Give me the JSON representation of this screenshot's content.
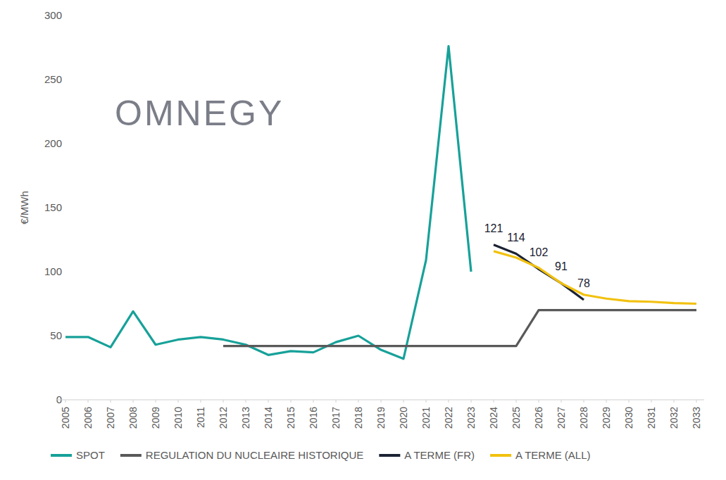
{
  "chart_data": {
    "type": "line",
    "y_label": "€/MWh",
    "annotations": [
      "OMNEGY"
    ],
    "categories": [
      "2005",
      "2006",
      "2007",
      "2008",
      "2009",
      "2010",
      "2011",
      "2012",
      "2013",
      "2014",
      "2015",
      "2016",
      "2017",
      "2018",
      "2019",
      "2020",
      "2021",
      "2022",
      "2023",
      "2024",
      "2025",
      "2026",
      "2027",
      "2028",
      "2029",
      "2030",
      "2031",
      "2032",
      "2033"
    ],
    "ylim": [
      0,
      300
    ],
    "yticks": [
      0,
      50,
      100,
      150,
      200,
      250,
      300
    ],
    "grid": false,
    "legend": "bottom",
    "series": [
      {
        "name": "SPOT",
        "color": "#17a199",
        "values": [
          49,
          49,
          41,
          69,
          43,
          47,
          49,
          47,
          43,
          35,
          38,
          37,
          45,
          50,
          39,
          32,
          109,
          276,
          100,
          null,
          null,
          null,
          null,
          null,
          null,
          null,
          null,
          null,
          null
        ]
      },
      {
        "name": "REGULATION DU NUCLEAIRE HISTORIQUE",
        "color": "#595959",
        "values": [
          null,
          null,
          null,
          null,
          null,
          null,
          null,
          42,
          42,
          42,
          42,
          42,
          42,
          42,
          42,
          42,
          42,
          42,
          42,
          42,
          42,
          70,
          70,
          70,
          70,
          70,
          70,
          70,
          70
        ]
      },
      {
        "name": "A TERME (FR)",
        "color": "#1b2232",
        "data_labels": true,
        "values": [
          null,
          null,
          null,
          null,
          null,
          null,
          null,
          null,
          null,
          null,
          null,
          null,
          null,
          null,
          null,
          null,
          null,
          null,
          null,
          121,
          114,
          102,
          91,
          78,
          null,
          null,
          null,
          null,
          null
        ]
      },
      {
        "name": "A TERME (ALL)",
        "color": "#f2c10f",
        "values": [
          null,
          null,
          null,
          null,
          null,
          null,
          null,
          null,
          null,
          null,
          null,
          null,
          null,
          null,
          null,
          null,
          null,
          null,
          null,
          116,
          111,
          103,
          91,
          82,
          79,
          77,
          76.5,
          75.5,
          75
        ]
      }
    ]
  }
}
